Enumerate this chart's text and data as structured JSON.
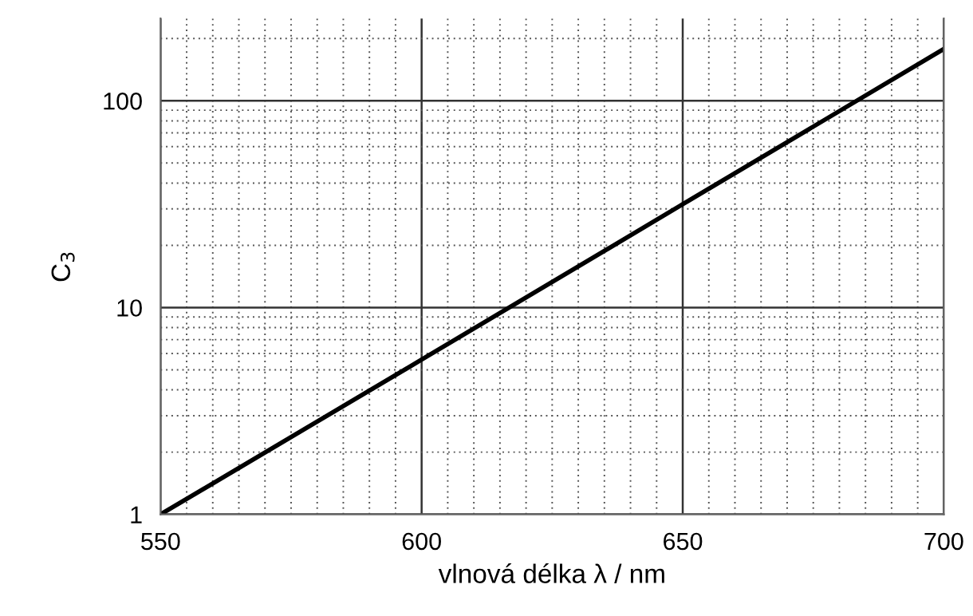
{
  "chart_data": {
    "type": "line",
    "xlabel": "vlnová délka λ / nm",
    "ylabel": "C$_{3}$",
    "x": [
      550,
      600,
      650,
      700
    ],
    "series": [
      {
        "color": "#000000",
        "values": [
          1,
          5.6,
          31.6,
          178
        ]
      }
    ],
    "xlim": [
      550,
      700
    ],
    "xticks": [
      550,
      600,
      650,
      700
    ],
    "ylim": [
      1,
      250
    ],
    "yticks": [
      1,
      10,
      100
    ],
    "log": true,
    "grid": true,
    "marker": "none",
    "line_style": "solid"
  }
}
